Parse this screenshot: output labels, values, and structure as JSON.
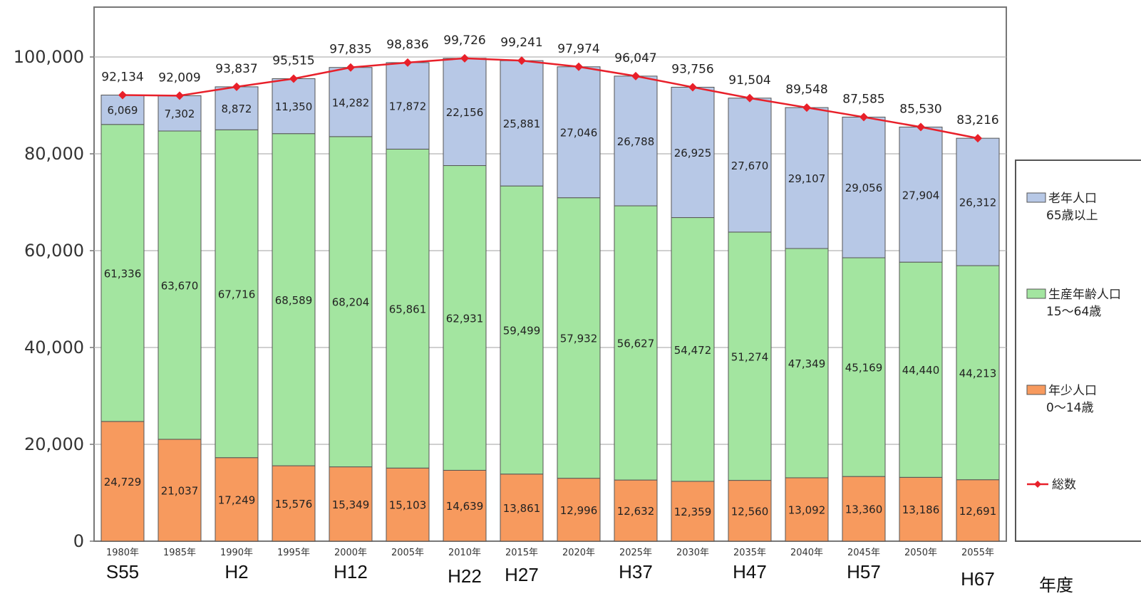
{
  "chart_data": {
    "type": "bar",
    "stacked": true,
    "categories": [
      "1980年",
      "1985年",
      "1990年",
      "1995年",
      "2000年",
      "2005年",
      "2010年",
      "2015年",
      "2020年",
      "2025年",
      "2030年",
      "2035年",
      "2040年",
      "2045年",
      "2050年",
      "2055年"
    ],
    "era_labels": [
      "S55",
      "",
      "H2",
      "",
      "H12",
      "",
      "H22",
      "H27",
      "",
      "H37",
      "",
      "H47",
      "",
      "H57",
      "",
      "H67"
    ],
    "series": [
      {
        "name": "年少人口\n0～14歳",
        "color": "#f79a5e",
        "values": [
          24729,
          21037,
          17249,
          15576,
          15349,
          15103,
          14639,
          13861,
          12996,
          12632,
          12359,
          12560,
          13092,
          13360,
          13186,
          12691
        ],
        "labels": [
          "24,729",
          "21,037",
          "17,249",
          "15,576",
          "15,349",
          "15,103",
          "14,639",
          "13,861",
          "12,996",
          "12,632",
          "12,359",
          "12,560",
          "13,092",
          "13,360",
          "13,186",
          "12,691"
        ]
      },
      {
        "name": "生産年齢人口\n15～64歳",
        "color": "#a3e5a0",
        "values": [
          61336,
          63670,
          67716,
          68589,
          68204,
          65861,
          62931,
          59499,
          57932,
          56627,
          54472,
          51274,
          47349,
          45169,
          44440,
          44213
        ],
        "labels": [
          "61,336",
          "63,670",
          "67,716",
          "68,589",
          "68,204",
          "65,861",
          "62,931",
          "59,499",
          "57,932",
          "56,627",
          "54,472",
          "51,274",
          "47,349",
          "45,169",
          "44,440",
          "44,213"
        ]
      },
      {
        "name": "老年人口\n65歳以上",
        "color": "#b7c8e6",
        "values": [
          6069,
          7302,
          8872,
          11350,
          14282,
          17872,
          22156,
          25881,
          27046,
          26788,
          26925,
          27670,
          29107,
          29056,
          27904,
          26312
        ],
        "labels": [
          "6,069",
          "7,302",
          "8,872",
          "11,350",
          "14,282",
          "17,872",
          "22,156",
          "25,881",
          "27,046",
          "26,788",
          "26,925",
          "27,670",
          "29,107",
          "29,056",
          "27,904",
          "26,312"
        ]
      }
    ],
    "line": {
      "name": "総数",
      "color": "#e8202a",
      "values": [
        92134,
        92009,
        93837,
        95515,
        97835,
        98836,
        99726,
        99241,
        97974,
        96047,
        93756,
        91504,
        89548,
        87585,
        85530,
        83216
      ],
      "labels": [
        "92,134",
        "92,009",
        "93,837",
        "95,515",
        "97,835",
        "98,836",
        "99,726",
        "99,241",
        "97,974",
        "96,047",
        "93,756",
        "91,504",
        "89,548",
        "87,585",
        "85,530",
        "83,216"
      ]
    },
    "y_ticks": [
      0,
      20000,
      40000,
      60000,
      80000,
      100000
    ],
    "y_tick_labels": [
      "0",
      "20,000",
      "40,000",
      "60,000",
      "80,000",
      "100,000"
    ],
    "ylim": [
      0,
      110000
    ],
    "grid": true,
    "legend_position": "right",
    "unit_label": "年度"
  }
}
